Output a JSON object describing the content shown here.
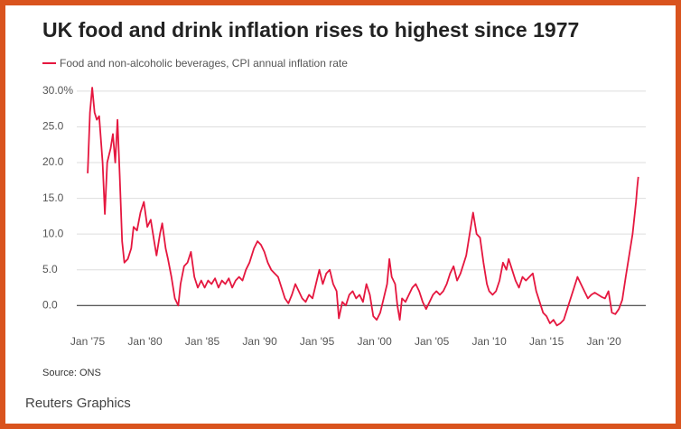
{
  "chart_data": {
    "type": "line",
    "title": "UK food and drink inflation rises to highest since 1977",
    "source": "Source: ONS",
    "credit": "Reuters Graphics",
    "x": [
      1975.0,
      1975.2,
      1975.4,
      1975.6,
      1975.8,
      1976.0,
      1976.3,
      1976.5,
      1976.7,
      1977.0,
      1977.2,
      1977.4,
      1977.6,
      1977.8,
      1978.0,
      1978.2,
      1978.5,
      1978.8,
      1979.0,
      1979.3,
      1979.6,
      1979.9,
      1980.2,
      1980.5,
      1980.8,
      1981.0,
      1981.3,
      1981.5,
      1981.8,
      1982.0,
      1982.3,
      1982.6,
      1982.9,
      1983.1,
      1983.4,
      1983.7,
      1984.0,
      1984.3,
      1984.6,
      1984.9,
      1985.2,
      1985.5,
      1985.8,
      1986.1,
      1986.4,
      1986.7,
      1987.0,
      1987.3,
      1987.6,
      1987.9,
      1988.2,
      1988.5,
      1988.8,
      1989.1,
      1989.5,
      1989.8,
      1990.1,
      1990.4,
      1990.7,
      1991.0,
      1991.3,
      1991.6,
      1991.9,
      1992.2,
      1992.5,
      1992.8,
      1993.1,
      1993.4,
      1993.7,
      1994.0,
      1994.3,
      1994.6,
      1994.9,
      1995.2,
      1995.5,
      1995.8,
      1996.1,
      1996.4,
      1996.7,
      1996.9,
      1997.2,
      1997.5,
      1997.8,
      1998.1,
      1998.4,
      1998.7,
      1999.0,
      1999.3,
      1999.6,
      1999.9,
      2000.2,
      2000.5,
      2000.8,
      2001.1,
      2001.3,
      2001.5,
      2001.8,
      2002.0,
      2002.2,
      2002.4,
      2002.7,
      2003.0,
      2003.3,
      2003.6,
      2003.9,
      2004.2,
      2004.5,
      2004.8,
      2005.1,
      2005.4,
      2005.7,
      2006.0,
      2006.3,
      2006.6,
      2006.9,
      2007.2,
      2007.5,
      2007.8,
      2008.0,
      2008.3,
      2008.6,
      2008.9,
      2009.2,
      2009.5,
      2009.8,
      2010.0,
      2010.3,
      2010.6,
      2010.9,
      2011.2,
      2011.5,
      2011.7,
      2012.0,
      2012.3,
      2012.6,
      2012.9,
      2013.2,
      2013.5,
      2013.8,
      2014.1,
      2014.4,
      2014.7,
      2015.0,
      2015.3,
      2015.6,
      2015.9,
      2016.2,
      2016.5,
      2016.8,
      2017.1,
      2017.4,
      2017.7,
      2018.0,
      2018.3,
      2018.6,
      2018.9,
      2019.2,
      2019.5,
      2019.8,
      2020.1,
      2020.4,
      2020.7,
      2021.0,
      2021.3,
      2021.6,
      2021.9,
      2022.2,
      2022.5,
      2022.8,
      2022.9,
      2023.0
    ],
    "series": [
      {
        "name": "Food and non-alcoholic beverages, CPI annual inflation rate",
        "color": "#e5173f",
        "values": [
          18.5,
          27,
          30.5,
          27,
          26,
          26.5,
          20,
          12.8,
          20,
          22,
          24,
          20,
          26,
          18,
          9,
          6,
          6.5,
          8,
          11,
          10.5,
          13,
          14.5,
          11,
          12,
          9,
          7,
          10,
          11.5,
          8,
          6.5,
          4,
          1,
          0,
          3,
          5.5,
          6,
          7.5,
          4,
          2.5,
          3.5,
          2.5,
          3.5,
          3,
          3.8,
          2.5,
          3.5,
          3,
          3.8,
          2.5,
          3.5,
          4,
          3.5,
          5,
          6,
          8,
          9,
          8.5,
          7.5,
          6,
          5,
          4.5,
          4,
          2.5,
          1,
          0.3,
          1.5,
          3,
          2,
          1,
          0.5,
          1.5,
          1,
          3,
          5,
          3,
          4.5,
          5,
          3,
          2,
          -1.8,
          0.5,
          0,
          1.5,
          2,
          1,
          1.5,
          0.5,
          3,
          1.5,
          -1.5,
          -2,
          -1,
          1,
          3,
          6.5,
          4,
          3,
          0,
          -2,
          1,
          0.5,
          1.5,
          2.5,
          3,
          2,
          0.5,
          -0.5,
          0.5,
          1.5,
          2,
          1.5,
          2,
          3,
          4.5,
          5.5,
          3.5,
          4.5,
          6,
          7,
          10,
          13,
          10,
          9.5,
          6,
          3,
          2,
          1.5,
          2,
          3.5,
          6,
          5,
          6.5,
          5,
          3.5,
          2.5,
          4,
          3.5,
          4,
          4.5,
          2,
          0.5,
          -1,
          -1.5,
          -2.5,
          -2,
          -2.8,
          -2.5,
          -2,
          -0.5,
          1,
          2.5,
          4,
          3,
          2,
          1,
          1.5,
          1.8,
          1.5,
          1.2,
          1,
          2,
          -1,
          -1.2,
          -0.5,
          0.8,
          4,
          7,
          10,
          14.5,
          16.5,
          18
        ]
      }
    ],
    "xlim": [
      1974.05,
      2023.65
    ],
    "xticks": [
      {
        "value": 1975,
        "label": "Jan '75"
      },
      {
        "value": 1980,
        "label": "Jan '80"
      },
      {
        "value": 1985,
        "label": "Jan '85"
      },
      {
        "value": 1990,
        "label": "Jan '90"
      },
      {
        "value": 1995,
        "label": "Jan '95"
      },
      {
        "value": 2000,
        "label": "Jan '00"
      },
      {
        "value": 2005,
        "label": "Jan '05"
      },
      {
        "value": 2010,
        "label": "Jan '10"
      },
      {
        "value": 2015,
        "label": "Jan '15"
      },
      {
        "value": 2020,
        "label": "Jan '20"
      }
    ],
    "ylim": [
      -3,
      31
    ],
    "yticks": [
      {
        "value": 0,
        "label": "0.0"
      },
      {
        "value": 5,
        "label": "5.0"
      },
      {
        "value": 10,
        "label": "10.0"
      },
      {
        "value": 15,
        "label": "15.0"
      },
      {
        "value": 20,
        "label": "20.0"
      },
      {
        "value": 25,
        "label": "25.0"
      },
      {
        "value": 30,
        "label": "30.0%"
      }
    ],
    "grid": true
  }
}
